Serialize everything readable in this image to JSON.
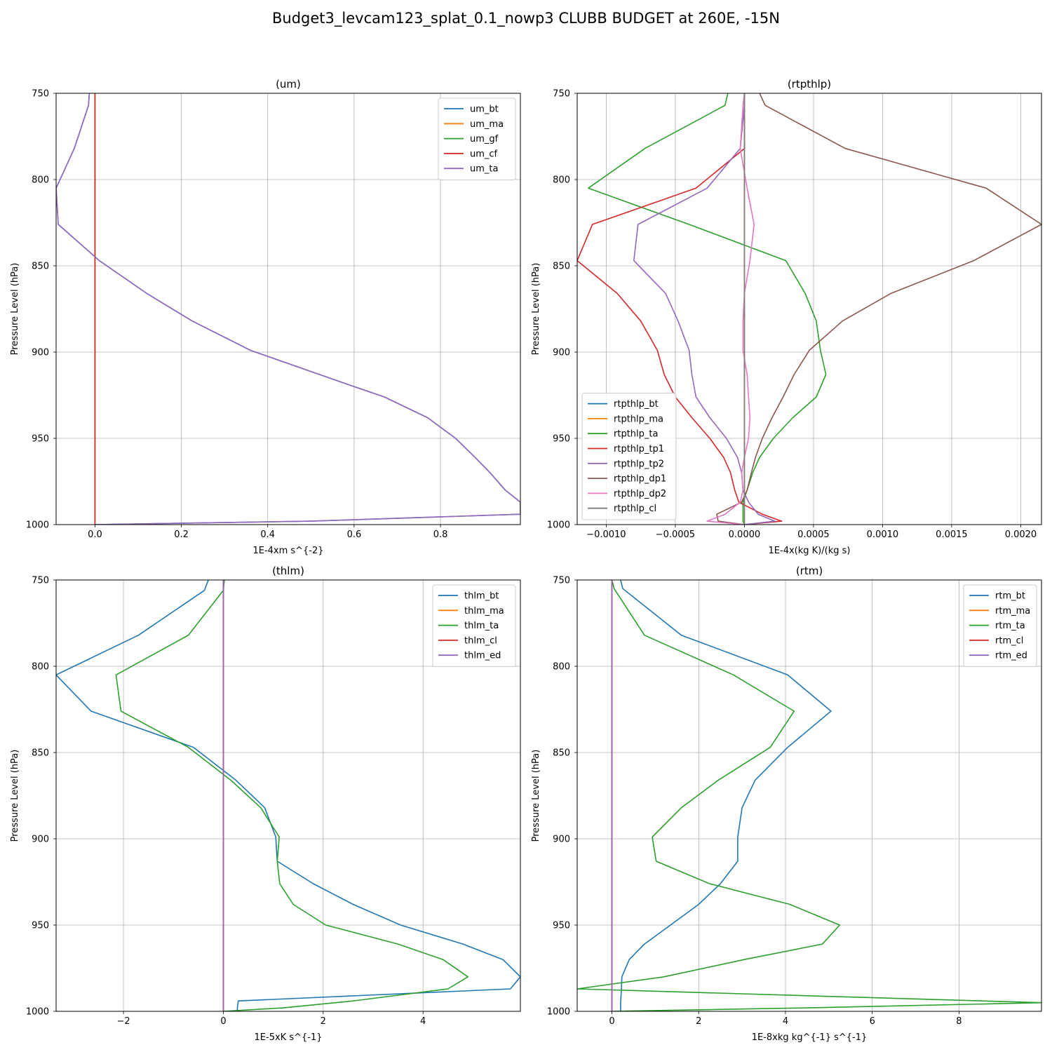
{
  "figure": {
    "suptitle": "Budget3_levcam123_splat_0.1_nowp3 CLUBB BUDGET at 260E, -15N"
  },
  "chart_data": [
    {
      "type": "line",
      "title": "(um)",
      "xlabel": "1E-4xm s^{-2}",
      "ylabel": "Pressure Level (hPa)",
      "xlim": [
        -0.09,
        0.985
      ],
      "ylim": [
        1000,
        750
      ],
      "xticks": [
        0.0,
        0.2,
        0.4,
        0.6,
        0.8
      ],
      "xtick_labels": [
        "0.0",
        "0.2",
        "0.4",
        "0.6",
        "0.8"
      ],
      "yticks": [
        750,
        800,
        850,
        900,
        950,
        1000
      ],
      "legend_loc": "upper right",
      "grid": true,
      "y": [
        750,
        757,
        782,
        805,
        826,
        847,
        866,
        882,
        899,
        920,
        926,
        938,
        950,
        961,
        970,
        980,
        987,
        994,
        998,
        1000
      ],
      "series": [
        {
          "name": "um_bt",
          "color": "#1f77b4",
          "values": [
            -0.013,
            -0.015,
            -0.048,
            -0.09,
            -0.085,
            0.01,
            0.12,
            0.225,
            0.36,
            0.6,
            0.67,
            0.77,
            0.835,
            0.88,
            0.915,
            0.95,
            0.985,
            0.985,
            0.5,
            0.0
          ]
        },
        {
          "name": "um_ma",
          "color": "#ff7f0e",
          "values": [
            0,
            0,
            0,
            0,
            0,
            0,
            0,
            0,
            0,
            0,
            0,
            0,
            0,
            0,
            0,
            0,
            0,
            0,
            0,
            0
          ]
        },
        {
          "name": "um_gf",
          "color": "#2ca02c",
          "values": [
            0,
            0,
            0,
            0,
            0,
            0,
            0,
            0,
            0,
            0,
            0,
            0,
            0,
            0,
            0,
            0,
            0,
            0,
            0,
            0
          ]
        },
        {
          "name": "um_cf",
          "color": "#d62728",
          "values": [
            0,
            0,
            0,
            0,
            0,
            0,
            0,
            0,
            0,
            0,
            0,
            0,
            0,
            0,
            0,
            0,
            0,
            0,
            0,
            0
          ]
        },
        {
          "name": "um_ta",
          "color": "#9467bd",
          "values": [
            -0.013,
            -0.015,
            -0.048,
            -0.09,
            -0.085,
            0.01,
            0.12,
            0.225,
            0.36,
            0.6,
            0.67,
            0.77,
            0.835,
            0.88,
            0.915,
            0.95,
            0.985,
            0.985,
            0.5,
            0.0
          ]
        }
      ]
    },
    {
      "type": "line",
      "title": "(rtpthlp)",
      "xlabel": "1E-4x(kg K)/(kg s)",
      "ylabel": "Pressure Level (hPa)",
      "xlim": [
        -0.00121,
        0.00215
      ],
      "ylim": [
        1000,
        750
      ],
      "xticks": [
        -0.001,
        -0.0005,
        0.0,
        0.0005,
        0.001,
        0.0015,
        0.002
      ],
      "xtick_labels": [
        "−0.0010",
        "−0.0005",
        "0.0000",
        "0.0005",
        "0.0010",
        "0.0015",
        "0.0020"
      ],
      "yticks": [
        750,
        800,
        850,
        900,
        950,
        1000
      ],
      "legend_loc": "lower left",
      "grid": true,
      "y": [
        750,
        757,
        782,
        805,
        826,
        847,
        866,
        882,
        899,
        913,
        926,
        938,
        950,
        961,
        970,
        980,
        987,
        994,
        998,
        1000
      ],
      "series": [
        {
          "name": "rtpthlp_bt",
          "color": "#1f77b4",
          "values": [
            0,
            0,
            0,
            0,
            0,
            0,
            0,
            0,
            0,
            0,
            0,
            0,
            0,
            0,
            0,
            0,
            0,
            0,
            0,
            0
          ]
        },
        {
          "name": "rtpthlp_ma",
          "color": "#ff7f0e",
          "values": [
            0,
            0,
            0,
            0,
            0,
            0,
            0,
            0,
            0,
            0,
            0,
            0,
            0,
            0,
            0,
            0,
            0,
            0,
            0,
            0
          ]
        },
        {
          "name": "rtpthlp_ta",
          "color": "#2ca02c",
          "values": [
            -0.00012,
            -0.00014,
            -0.00072,
            -0.00113,
            -0.0004,
            0.0003,
            0.00044,
            0.00052,
            0.00055,
            0.00059,
            0.00052,
            0.00035,
            0.00021,
            0.00011,
            6e-05,
            2e-05,
            -1e-05,
            -1e-05,
            -1e-05,
            0
          ]
        },
        {
          "name": "rtpthlp_tp1",
          "color": "#d62728",
          "values": [
            0,
            0,
            0,
            -0.00035,
            -0.0011,
            -0.00121,
            -0.00092,
            -0.00075,
            -0.00063,
            -0.00058,
            -0.0005,
            -0.00038,
            -0.00025,
            -0.00015,
            -0.0001,
            -7e-05,
            -4e-05,
            0.00013,
            0.00027,
            0
          ]
        },
        {
          "name": "rtpthlp_tp2",
          "color": "#9467bd",
          "values": [
            0,
            0,
            -3e-05,
            -0.00027,
            -0.00077,
            -0.0008,
            -0.00057,
            -0.00048,
            -0.0004,
            -0.00038,
            -0.00035,
            -0.00025,
            -0.00013,
            -5e-05,
            -2e-05,
            -1e-05,
            3e-05,
            0.0001,
            0.00022,
            0
          ]
        },
        {
          "name": "rtpthlp_dp1",
          "color": "#8c564b",
          "values": [
            0.00011,
            0.00015,
            0.00073,
            0.00175,
            0.00215,
            0.00166,
            0.00106,
            0.00071,
            0.00047,
            0.00036,
            0.00028,
            0.0002,
            0.00013,
            8e-05,
            5e-05,
            2e-05,
            -2e-05,
            -0.0002,
            -0.00019,
            0
          ]
        },
        {
          "name": "rtpthlp_dp2",
          "color": "#e377c2",
          "values": [
            0,
            -1e-05,
            -3e-05,
            2e-05,
            7e-05,
            4e-05,
            0,
            -1e-05,
            -1e-05,
            2e-05,
            3e-05,
            4e-05,
            3e-05,
            0,
            -2e-05,
            -1e-05,
            -3e-05,
            -0.00014,
            -0.00027,
            0
          ]
        },
        {
          "name": "rtpthlp_cl",
          "color": "#7f7f7f",
          "values": [
            0,
            0,
            0,
            0,
            0,
            0,
            0,
            0,
            0,
            0,
            0,
            0,
            0,
            0,
            0,
            0,
            0,
            0,
            0,
            0
          ]
        }
      ]
    },
    {
      "type": "line",
      "title": "(thlm)",
      "xlabel": "1E-5xK s^{-1}",
      "ylabel": "Pressure Level (hPa)",
      "xlim": [
        -3.35,
        5.95
      ],
      "ylim": [
        1000,
        750
      ],
      "xticks": [
        -2,
        0,
        2,
        4
      ],
      "xtick_labels": [
        "−2",
        "0",
        "2",
        "4"
      ],
      "yticks": [
        750,
        800,
        850,
        900,
        950,
        1000
      ],
      "legend_loc": "upper right",
      "grid": true,
      "y": [
        750,
        756,
        782,
        805,
        826,
        847,
        866,
        882,
        899,
        913,
        926,
        938,
        950,
        961,
        970,
        980,
        987,
        994,
        998,
        1000
      ],
      "series": [
        {
          "name": "thlm_bt",
          "color": "#1f77b4",
          "values": [
            -0.3,
            -0.38,
            -1.7,
            -3.35,
            -2.65,
            -0.6,
            0.25,
            0.83,
            1.05,
            1.08,
            1.8,
            2.6,
            3.55,
            4.8,
            5.6,
            5.95,
            5.75,
            0.3,
            0.28,
            0.28
          ]
        },
        {
          "name": "thlm_ma",
          "color": "#ff7f0e",
          "values": [
            0,
            0,
            0,
            0,
            0,
            0,
            0,
            0,
            0,
            0,
            0,
            0,
            0,
            0,
            0,
            0,
            0,
            0,
            0,
            0
          ]
        },
        {
          "name": "thlm_ta",
          "color": "#2ca02c",
          "values": [
            0.02,
            0,
            -0.7,
            -2.15,
            -2.05,
            -0.7,
            0.15,
            0.75,
            1.12,
            1.08,
            1.13,
            1.4,
            2.05,
            3.5,
            4.4,
            4.9,
            4.5,
            2.6,
            1.2,
            0
          ]
        },
        {
          "name": "thlm_cl",
          "color": "#d62728",
          "values": [
            0,
            0,
            0,
            0,
            0,
            0,
            0,
            0,
            0,
            0,
            0,
            0,
            0,
            0,
            0,
            0,
            0,
            0,
            0,
            0
          ]
        },
        {
          "name": "thlm_ed",
          "color": "#9467bd",
          "values": [
            0,
            0,
            0,
            0,
            0,
            0,
            0,
            0,
            0,
            0,
            0,
            0,
            0,
            0,
            0,
            0,
            0,
            0,
            0,
            0
          ]
        }
      ]
    },
    {
      "type": "line",
      "title": "(rtm)",
      "xlabel": "1E-8xkg kg^{-1} s^{-1}",
      "ylabel": "Pressure Level (hPa)",
      "xlim": [
        -0.8,
        9.9
      ],
      "ylim": [
        1000,
        750
      ],
      "xticks": [
        0,
        2,
        4,
        6,
        8
      ],
      "xtick_labels": [
        "0",
        "2",
        "4",
        "6",
        "8"
      ],
      "yticks": [
        750,
        800,
        850,
        900,
        950,
        1000
      ],
      "legend_loc": "upper right",
      "grid": true,
      "y": [
        750,
        755,
        782,
        805,
        826,
        847,
        866,
        882,
        899,
        913,
        926,
        938,
        950,
        961,
        970,
        980,
        987,
        995,
        998,
        1000
      ],
      "series": [
        {
          "name": "rtm_bt",
          "color": "#1f77b4",
          "values": [
            0.2,
            0.25,
            1.6,
            4.05,
            5.05,
            4.05,
            3.3,
            3.0,
            2.9,
            2.9,
            2.5,
            2.0,
            1.35,
            0.75,
            0.4,
            0.23,
            0.22,
            0.2,
            0.2,
            0.2
          ]
        },
        {
          "name": "rtm_ma",
          "color": "#ff7f0e",
          "values": [
            0,
            0,
            0,
            0,
            0,
            0,
            0,
            0,
            0,
            0,
            0,
            0,
            0,
            0,
            0,
            0,
            0,
            0,
            0,
            0
          ]
        },
        {
          "name": "rtm_ta",
          "color": "#2ca02c",
          "values": [
            0,
            0.05,
            0.75,
            2.8,
            4.2,
            3.65,
            2.45,
            1.6,
            0.93,
            1.02,
            2.25,
            4.1,
            5.25,
            4.85,
            3.05,
            1.2,
            -0.8,
            9.9,
            4.5,
            0
          ]
        },
        {
          "name": "rtm_cl",
          "color": "#d62728",
          "values": [
            0,
            0,
            0,
            0,
            0,
            0,
            0,
            0,
            0,
            0,
            0,
            0,
            0,
            0,
            0,
            0,
            0,
            0,
            0,
            0
          ]
        },
        {
          "name": "rtm_ed",
          "color": "#9467bd",
          "values": [
            0,
            0,
            0,
            0,
            0,
            0,
            0,
            0,
            0,
            0,
            0,
            0,
            0,
            0,
            0,
            0,
            0,
            0,
            0,
            0
          ]
        }
      ]
    }
  ]
}
